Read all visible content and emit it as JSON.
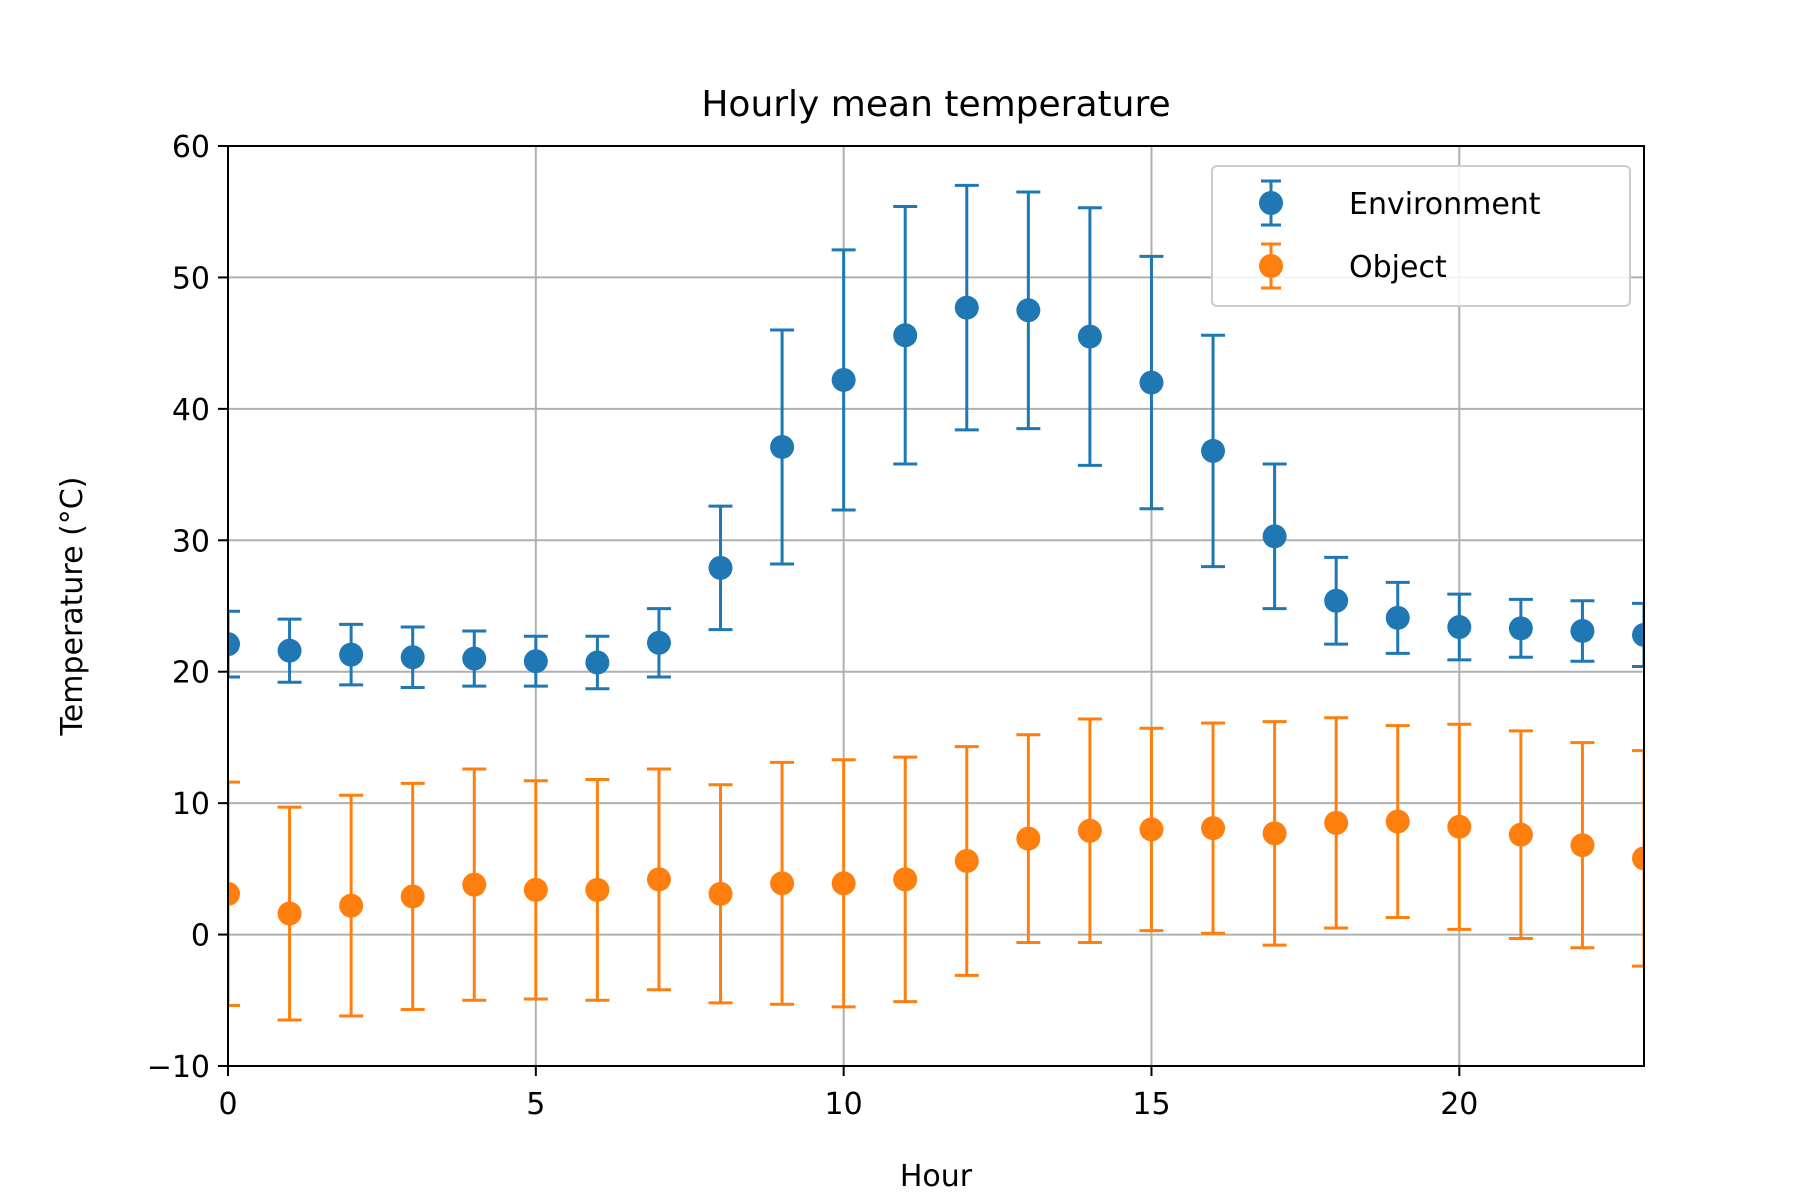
{
  "chart_data": {
    "type": "scatter",
    "title": "Hourly mean temperature",
    "xlabel": "Hour",
    "ylabel": "Temperature (°C)",
    "xlim": [
      0,
      23
    ],
    "ylim": [
      -10,
      60
    ],
    "xticks": [
      0,
      5,
      10,
      15,
      20
    ],
    "yticks": [
      -10,
      0,
      10,
      20,
      30,
      40,
      50,
      60
    ],
    "ytick_labels": [
      "−10",
      "0",
      "10",
      "20",
      "30",
      "40",
      "50",
      "60"
    ],
    "grid": true,
    "legend_position": "top-right",
    "x": [
      0,
      1,
      2,
      3,
      4,
      5,
      6,
      7,
      8,
      9,
      10,
      11,
      12,
      13,
      14,
      15,
      16,
      17,
      18,
      19,
      20,
      21,
      22,
      23
    ],
    "series": [
      {
        "name": "Environment",
        "color": "#1f77b4",
        "values": [
          22.1,
          21.6,
          21.3,
          21.1,
          21.0,
          20.8,
          20.7,
          22.2,
          27.9,
          37.1,
          42.2,
          45.6,
          47.7,
          47.5,
          45.5,
          42.0,
          36.8,
          30.3,
          25.4,
          24.1,
          23.4,
          23.3,
          23.1,
          22.8
        ],
        "errors": [
          2.5,
          2.4,
          2.3,
          2.3,
          2.1,
          1.9,
          2.0,
          2.6,
          4.7,
          8.9,
          9.9,
          9.8,
          9.3,
          9.0,
          9.8,
          9.6,
          8.8,
          5.5,
          3.3,
          2.7,
          2.5,
          2.2,
          2.3,
          2.4
        ]
      },
      {
        "name": "Object",
        "color": "#ff7f0e",
        "values": [
          3.1,
          1.6,
          2.2,
          2.9,
          3.8,
          3.4,
          3.4,
          4.2,
          3.1,
          3.9,
          3.9,
          4.2,
          5.6,
          7.3,
          7.9,
          8.0,
          8.1,
          7.7,
          8.5,
          8.6,
          8.2,
          7.6,
          6.8,
          5.8
        ],
        "errors": [
          8.5,
          8.1,
          8.4,
          8.6,
          8.8,
          8.3,
          8.4,
          8.4,
          8.3,
          9.2,
          9.4,
          9.3,
          8.7,
          7.9,
          8.5,
          7.7,
          8.0,
          8.5,
          8.0,
          7.3,
          7.8,
          7.9,
          7.8,
          8.2
        ]
      }
    ]
  }
}
